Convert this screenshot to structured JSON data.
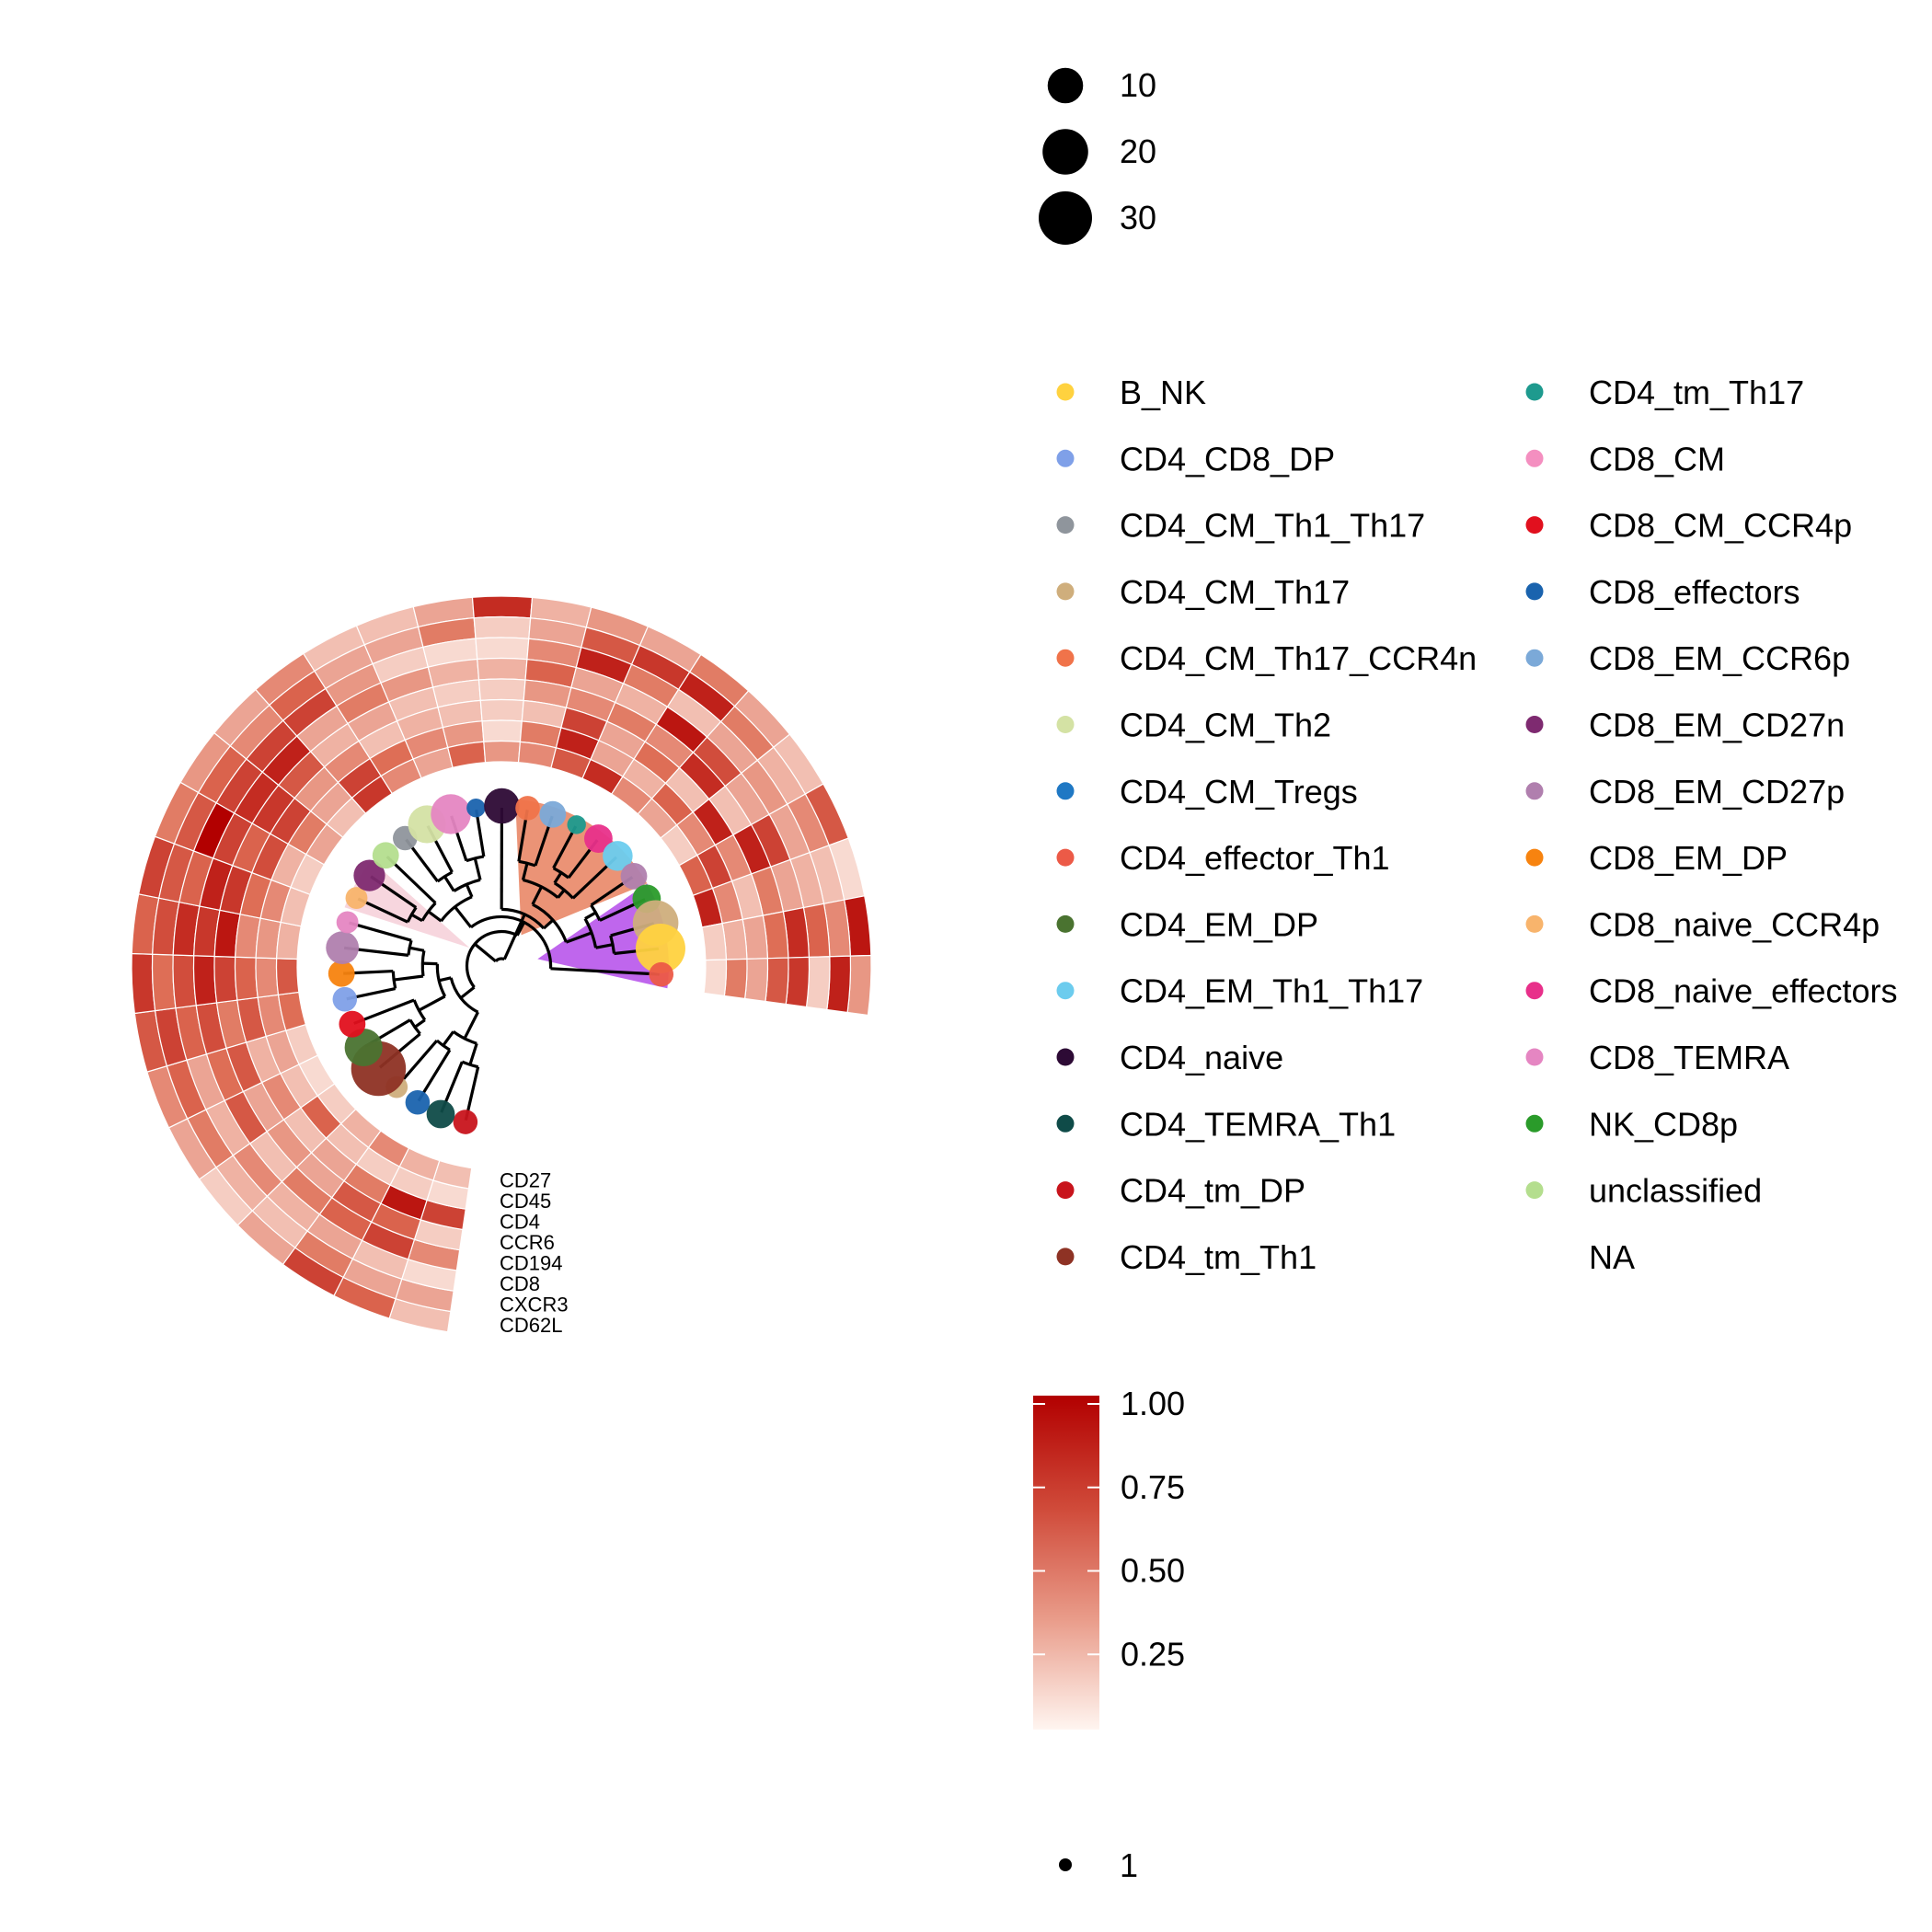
{
  "chart_data": {
    "type": "heatmap",
    "layout": "circular-dendrogram-heatmap",
    "markers": [
      "CD62L",
      "CXCR3",
      "CD8",
      "CD194",
      "CCR6",
      "CD4",
      "CD45",
      "CD27"
    ],
    "clusters": [
      {
        "id": 1,
        "population": "CD4_tm_DP",
        "size": 3,
        "values": [
          0.2,
          0.3,
          0.1,
          0.4,
          0.15,
          0.7,
          0.1,
          0.2
        ]
      },
      {
        "id": 2,
        "population": "CD4_TEMRA_Th1",
        "size": 5,
        "values": [
          0.55,
          0.3,
          0.2,
          0.7,
          0.55,
          0.9,
          0.15,
          0.25
        ]
      },
      {
        "id": 3,
        "population": "CD8_effectors",
        "size": 3,
        "values": [
          0.7,
          0.45,
          0.3,
          0.55,
          0.6,
          0.45,
          0.15,
          0.4
        ]
      },
      {
        "id": 4,
        "population": "CD4_CM_Th17",
        "size": 2,
        "values": [
          0.3,
          0.2,
          0.25,
          0.45,
          0.3,
          0.3,
          0.2,
          0.25
        ]
      },
      {
        "id": 5,
        "population": "CD4_tm_Th1",
        "size": 32,
        "values": [
          0.15,
          0.25,
          0.4,
          0.2,
          0.35,
          0.2,
          0.55,
          0.15
        ]
      },
      {
        "id": 6,
        "population": "CD4_EM_DP",
        "size": 12,
        "values": [
          0.3,
          0.45,
          0.25,
          0.6,
          0.3,
          0.4,
          0.2,
          0.1
        ]
      },
      {
        "id": 7,
        "population": "CD8_CM_CCR4p",
        "size": 4,
        "values": [
          0.4,
          0.55,
          0.3,
          0.5,
          0.6,
          0.25,
          0.3,
          0.15
        ]
      },
      {
        "id": 8,
        "population": "CD4_CD8_DP",
        "size": 3,
        "values": [
          0.6,
          0.7,
          0.55,
          0.65,
          0.45,
          0.6,
          0.4,
          0.5
        ]
      },
      {
        "id": 9,
        "population": "CD8_EM_DP",
        "size": 4,
        "values": [
          0.75,
          0.5,
          0.65,
          0.85,
          0.7,
          0.55,
          0.4,
          0.6
        ]
      },
      {
        "id": 10,
        "population": "CD8_EM_CD27p",
        "size": 8,
        "values": [
          0.55,
          0.65,
          0.8,
          0.75,
          0.9,
          0.4,
          0.35,
          0.25
        ]
      },
      {
        "id": 11,
        "population": "CD8_TEMRA",
        "size": 2,
        "values": [
          0.7,
          0.6,
          0.55,
          0.85,
          0.75,
          0.5,
          0.4,
          0.2
        ]
      },
      {
        "id": 12,
        "population": "CD8_naive_CCR4p",
        "size": 2,
        "values": [
          0.45,
          0.6,
          1.0,
          0.7,
          0.55,
          0.65,
          0.25,
          0.15
        ]
      },
      {
        "id": 13,
        "population": "CD8_EM_CD27n",
        "size": 7,
        "values": [
          0.35,
          0.55,
          0.7,
          0.8,
          0.75,
          0.7,
          0.45,
          0.3
        ]
      },
      {
        "id": 14,
        "population": "unclassified",
        "size": 4,
        "values": [
          0.3,
          0.4,
          0.7,
          0.85,
          0.6,
          0.35,
          0.3,
          0.2
        ]
      },
      {
        "id": 15,
        "population": "CD4_CM_Th1_Th17",
        "size": 3,
        "values": [
          0.4,
          0.55,
          0.7,
          0.3,
          0.25,
          0.4,
          0.7,
          0.75
        ]
      },
      {
        "id": 16,
        "population": "CD4_CM_Th2",
        "size": 12,
        "values": [
          0.2,
          0.3,
          0.35,
          0.45,
          0.3,
          0.2,
          0.5,
          0.4
        ]
      },
      {
        "id": 17,
        "population": "CD8_TEMRA",
        "size": 14,
        "values": [
          0.2,
          0.3,
          0.15,
          0.35,
          0.2,
          0.25,
          0.4,
          0.3
        ]
      },
      {
        "id": 18,
        "population": "CD8_effectors",
        "size": 1,
        "values": [
          0.3,
          0.45,
          0.1,
          0.25,
          0.15,
          0.2,
          0.35,
          0.55
        ]
      },
      {
        "id": 19,
        "population": "CD4_naive",
        "size": 10,
        "values": [
          0.8,
          0.15,
          0.1,
          0.25,
          0.15,
          0.15,
          0.1,
          0.35
        ]
      },
      {
        "id": 20,
        "population": "CD4_CM_Th17_CCR4n",
        "size": 3,
        "values": [
          0.25,
          0.3,
          0.4,
          0.55,
          0.35,
          0.2,
          0.45,
          0.4
        ]
      },
      {
        "id": 21,
        "population": "CD8_EM_CCR6p",
        "size": 4,
        "values": [
          0.35,
          0.6,
          0.85,
          0.3,
          0.4,
          0.7,
          0.85,
          0.6
        ]
      },
      {
        "id": 22,
        "population": "CD4_tm_Th17",
        "size": 1,
        "values": [
          0.3,
          0.75,
          0.45,
          0.25,
          0.45,
          0.3,
          0.3,
          0.8
        ]
      },
      {
        "id": 23,
        "population": "CD8_naive_effectors",
        "size": 5,
        "values": [
          0.45,
          0.85,
          0.2,
          0.9,
          0.4,
          0.5,
          0.25,
          0.4
        ]
      },
      {
        "id": 24,
        "population": "CD4_EM_Th1_Th17",
        "size": 6,
        "values": [
          0.3,
          0.45,
          0.3,
          0.65,
          0.8,
          0.2,
          0.55,
          0.3
        ]
      },
      {
        "id": 25,
        "population": "CD8_EM_CD27p",
        "size": 4,
        "values": [
          0.2,
          0.25,
          0.35,
          0.3,
          0.2,
          0.85,
          0.4,
          0.15
        ]
      },
      {
        "id": 26,
        "population": "NK_CD8p",
        "size": 5,
        "values": [
          0.6,
          0.4,
          0.3,
          0.7,
          0.85,
          0.4,
          0.7,
          0.55
        ]
      },
      {
        "id": 27,
        "population": "CD4_CM_Th17",
        "size": 20,
        "values": [
          0.1,
          0.2,
          0.25,
          0.3,
          0.45,
          0.2,
          0.4,
          0.85
        ]
      },
      {
        "id": 28,
        "population": "B_NK",
        "size": 25,
        "values": [
          0.9,
          0.4,
          0.55,
          0.8,
          0.5,
          0.3,
          0.25,
          0.15
        ]
      },
      {
        "id": 29,
        "population": "CD4_effector_Th1",
        "size": 3,
        "values": [
          0.35,
          0.85,
          0.15,
          0.75,
          0.6,
          0.3,
          0.45,
          0.1
        ]
      }
    ],
    "highlight_clades": [
      {
        "color": "#F6CFD8",
        "clusters": [
          12,
          13
        ]
      },
      {
        "color": "#E8805E",
        "clusters": [
          20,
          21,
          22,
          23,
          24,
          25
        ]
      },
      {
        "color": "#B44BEA",
        "clusters": [
          26,
          27,
          28,
          29
        ]
      }
    ],
    "size_legend": {
      "values": [
        10,
        20,
        30
      ]
    },
    "population_legend": [
      {
        "label": "B_NK",
        "color": "#FFD23F"
      },
      {
        "label": "CD4_CD8_DP",
        "color": "#7FA0E8"
      },
      {
        "label": "CD4_CM_Th1_Th17",
        "color": "#8F959C"
      },
      {
        "label": "CD4_CM_Th17",
        "color": "#CFAE7C"
      },
      {
        "label": "CD4_CM_Th17_CCR4n",
        "color": "#F0734A"
      },
      {
        "label": "CD4_CM_Th2",
        "color": "#D4E2A4"
      },
      {
        "label": "CD4_CM_Tregs",
        "color": "#1F78C4"
      },
      {
        "label": "CD4_effector_Th1",
        "color": "#EC5A47"
      },
      {
        "label": "CD4_EM_DP",
        "color": "#4A7330"
      },
      {
        "label": "CD4_EM_Th1_Th17",
        "color": "#6CCCEE"
      },
      {
        "label": "CD4_naive",
        "color": "#2D0A35"
      },
      {
        "label": "CD4_TEMRA_Th1",
        "color": "#0F4B48"
      },
      {
        "label": "CD4_tm_DP",
        "color": "#C8141C"
      },
      {
        "label": "CD4_tm_Th1",
        "color": "#8E3224"
      },
      {
        "label": "CD4_tm_Th17",
        "color": "#1E9A8E"
      },
      {
        "label": "CD8_CM",
        "color": "#F48FC0"
      },
      {
        "label": "CD8_CM_CCR4p",
        "color": "#E1101E"
      },
      {
        "label": "CD8_effectors",
        "color": "#1A63AE"
      },
      {
        "label": "CD8_EM_CCR6p",
        "color": "#7BA9D8"
      },
      {
        "label": "CD8_EM_CD27n",
        "color": "#7E2A70"
      },
      {
        "label": "CD8_EM_CD27p",
        "color": "#B07FAE"
      },
      {
        "label": "CD8_EM_DP",
        "color": "#F7830F"
      },
      {
        "label": "CD8_naive_CCR4p",
        "color": "#F8B46C"
      },
      {
        "label": "CD8_naive_effectors",
        "color": "#E8308A"
      },
      {
        "label": "CD8_TEMRA",
        "color": "#E586C2"
      },
      {
        "label": "NK_CD8p",
        "color": "#2A9B2A"
      },
      {
        "label": "unclassified",
        "color": "#B4DE8E"
      },
      {
        "label": "NA",
        "color": ""
      }
    ],
    "colorbar": {
      "min": 0,
      "max": 1,
      "ticks": [
        "0.25",
        "0.50",
        "0.75",
        "1.00"
      ],
      "low_color": "#FFF5F0",
      "high_color": "#B20000"
    },
    "bottom_legend": {
      "value": "1"
    }
  }
}
